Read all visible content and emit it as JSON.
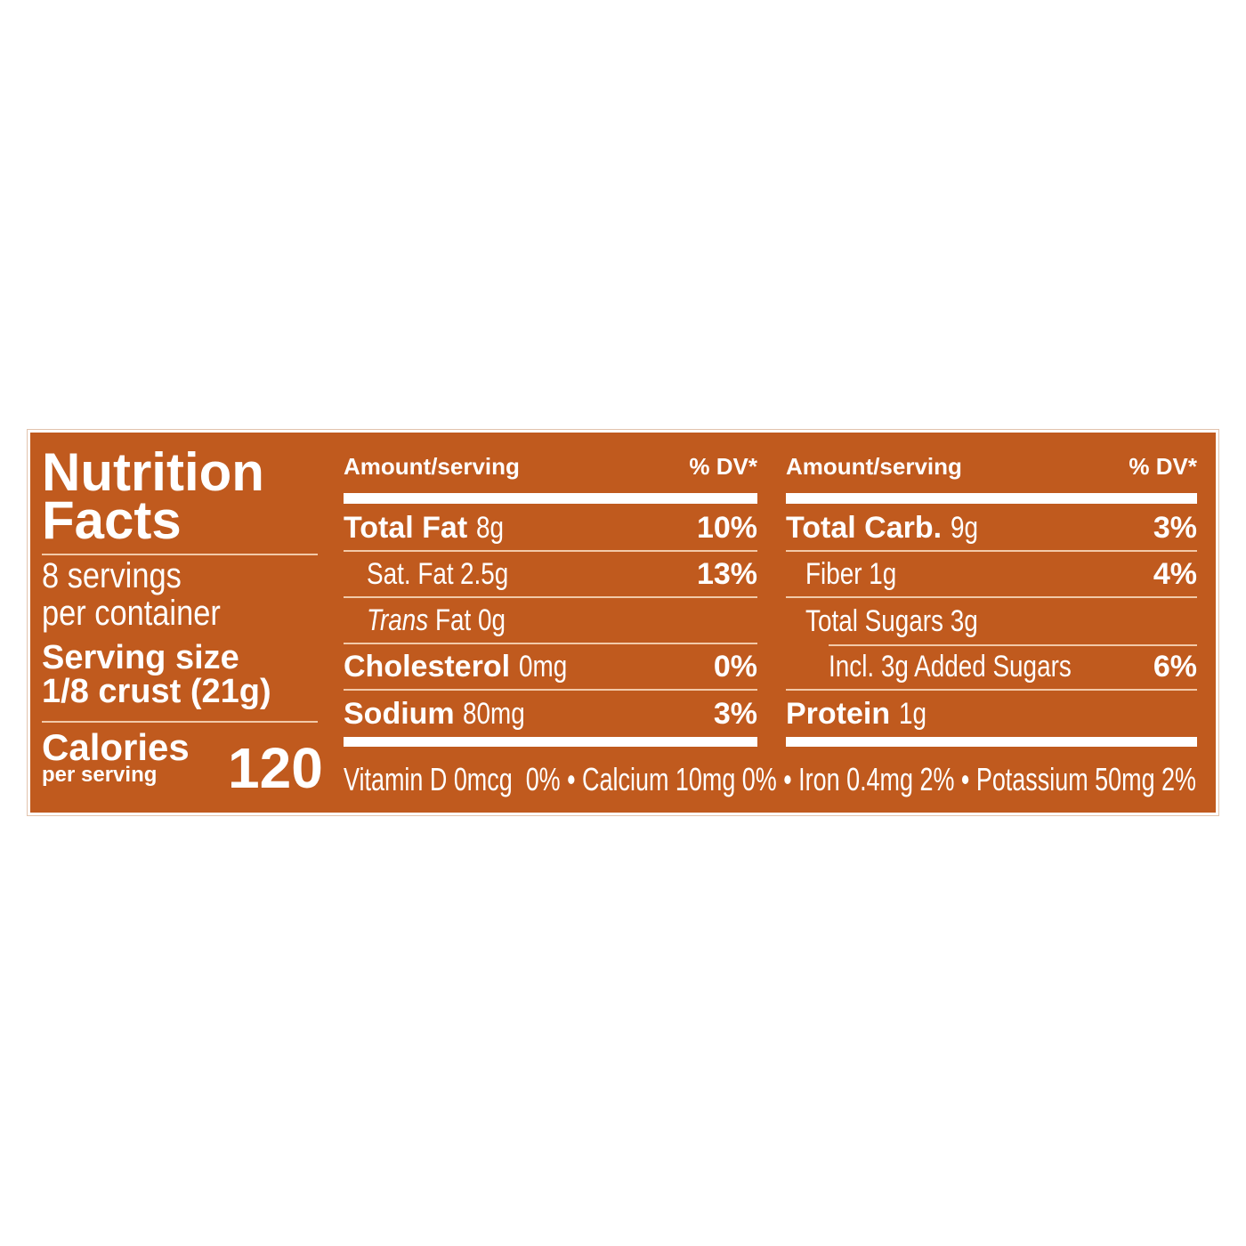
{
  "colors": {
    "background": "#c05a1e",
    "text": "#ffffff"
  },
  "title": [
    "Nutrition",
    "Facts"
  ],
  "servings": [
    "8 servings",
    "per container"
  ],
  "serving_size_label": "Serving size",
  "serving_size_value": "1/8 crust (21g)",
  "calories_label": "Calories",
  "calories_sub": "per serving",
  "calories_value": "120",
  "left_table": {
    "header_amount": "Amount/serving",
    "header_dv": "% DV*",
    "rows": [
      {
        "name": "Total Fat",
        "amount": "8g",
        "dv": "10%"
      },
      {
        "name": "Sat. Fat",
        "amount": "2.5g",
        "dv": "13%"
      },
      {
        "name": "Trans",
        "name_rest": "Fat 0g",
        "dv": ""
      },
      {
        "name": "Cholesterol",
        "amount": "0mg",
        "dv": "0%"
      },
      {
        "name": "Sodium",
        "amount": "80mg",
        "dv": "3%"
      }
    ]
  },
  "right_table": {
    "header_amount": "Amount/serving",
    "header_dv": "% DV*",
    "rows": [
      {
        "name": "Total Carb.",
        "amount": "9g",
        "dv": "3%"
      },
      {
        "name": "Fiber 1g",
        "dv": "4%"
      },
      {
        "name": "Total Sugars 3g",
        "dv": ""
      },
      {
        "name": "Incl. 3g Added Sugars",
        "dv": "6%"
      },
      {
        "name": "Protein",
        "amount": "1g",
        "dv": ""
      }
    ]
  },
  "vitamins": "Vitamin D 0mcg  0% • Calcium 10mg 0% • Iron 0.4mg 2% • Potassium 50mg 2%"
}
